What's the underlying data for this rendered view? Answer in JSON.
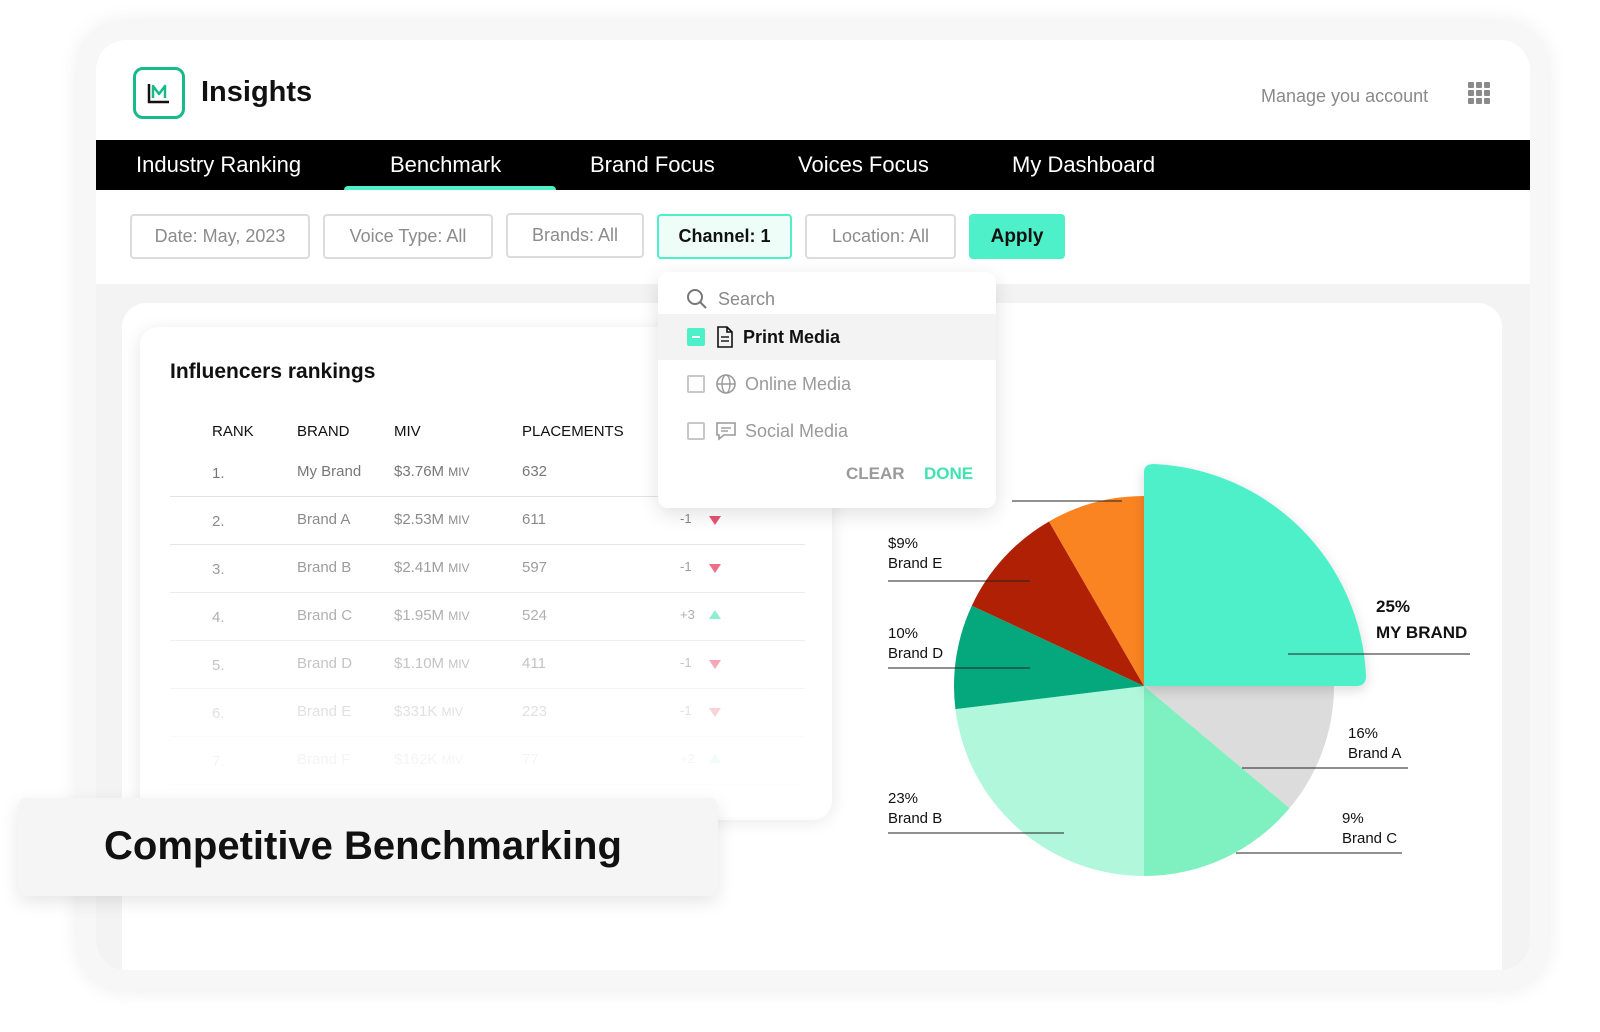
{
  "app": {
    "title": "Insights",
    "account_link": "Manage you account"
  },
  "nav": {
    "tabs": [
      {
        "label": "Industry Ranking"
      },
      {
        "label": "Benchmark",
        "active": true
      },
      {
        "label": "Brand Focus"
      },
      {
        "label": "Voices Focus"
      },
      {
        "label": "My Dashboard"
      }
    ]
  },
  "filters": {
    "date": "Date: May, 2023",
    "voice_type": "Voice Type: All",
    "brands": "Brands: All",
    "channel": "Channel: 1",
    "location": "Location: All",
    "apply": "Apply"
  },
  "dropdown": {
    "search_placeholder": "Search",
    "items": [
      {
        "label": "Print Media",
        "checked": true,
        "icon": "document-icon"
      },
      {
        "label": "Online Media",
        "checked": false,
        "icon": "globe-icon"
      },
      {
        "label": "Social Media",
        "checked": false,
        "icon": "chat-icon"
      }
    ],
    "clear": "CLEAR",
    "done": "DONE"
  },
  "rankings": {
    "title": "Influencers rankings",
    "columns": [
      "RANK",
      "BRAND",
      "MIV",
      "PLACEMENTS"
    ],
    "miv_unit": "MIV",
    "rows": [
      {
        "rank": "1.",
        "brand": "My Brand",
        "miv": "$3.76M",
        "placements": "632",
        "change": "",
        "trend": ""
      },
      {
        "rank": "2.",
        "brand": "Brand A",
        "miv": "$2.53M",
        "placements": "611",
        "change": "-1",
        "trend": "down"
      },
      {
        "rank": "3.",
        "brand": "Brand B",
        "miv": "$2.41M",
        "placements": "597",
        "change": "-1",
        "trend": "down"
      },
      {
        "rank": "4.",
        "brand": "Brand C",
        "miv": "$1.95M",
        "placements": "524",
        "change": "+3",
        "trend": "up"
      },
      {
        "rank": "5.",
        "brand": "Brand D",
        "miv": "$1.10M",
        "placements": "411",
        "change": "-1",
        "trend": "down"
      },
      {
        "rank": "6.",
        "brand": "Brand E",
        "miv": "$331K",
        "placements": "223",
        "change": "-1",
        "trend": "down"
      },
      {
        "rank": "7.",
        "brand": "Brand F",
        "miv": "$162K",
        "placements": "77",
        "change": "+2",
        "trend": "up"
      }
    ]
  },
  "pie": {
    "labels": {
      "my_brand_pct": "25%",
      "my_brand_name": "MY BRAND",
      "a_pct": "16%",
      "a_name": "Brand A",
      "c_pct": "9%",
      "c_name": "Brand C",
      "b_pct": "23%",
      "b_name": "Brand B",
      "d_pct": "10%",
      "d_name": "Brand D",
      "e_pct": "$9%",
      "e_name": "Brand E"
    },
    "colors": {
      "my_brand": "#4df0c8",
      "brand_a": "#dcdcdc",
      "brand_c": "#7ff0c0",
      "brand_b": "#b0f7dc",
      "brand_d": "#05a87d",
      "brand_e": "#b02005",
      "other": "#fb8422"
    }
  },
  "caption": "Competitive Benchmarking"
}
